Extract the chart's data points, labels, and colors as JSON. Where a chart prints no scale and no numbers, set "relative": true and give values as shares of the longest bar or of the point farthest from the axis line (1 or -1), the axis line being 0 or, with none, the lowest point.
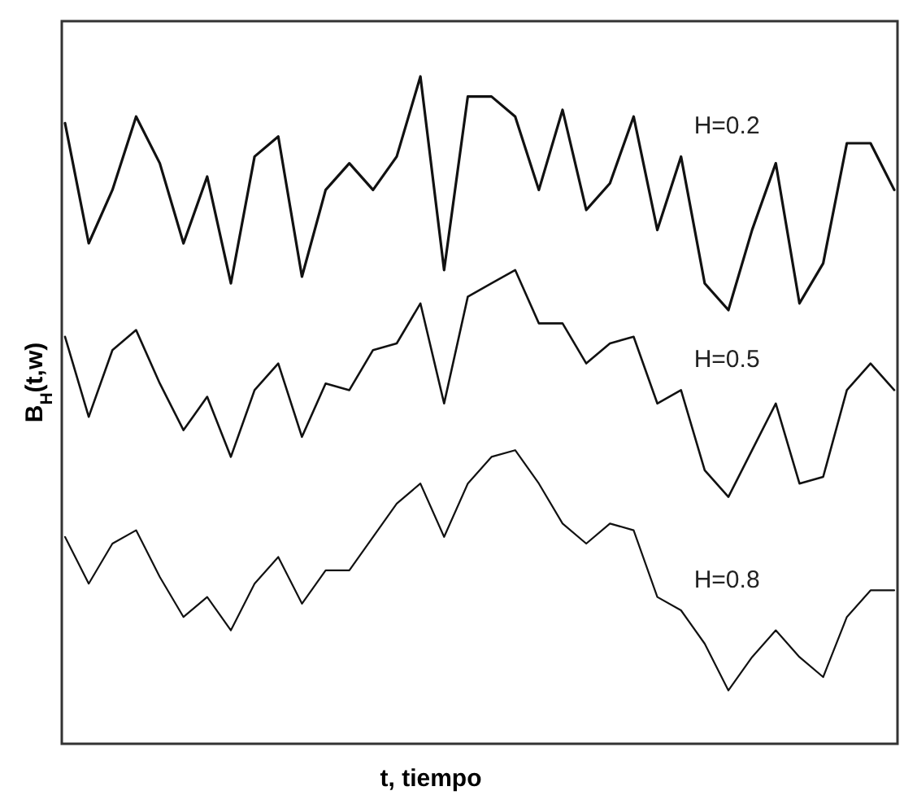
{
  "chart_data": {
    "type": "line",
    "relative": true,
    "xlabel": "t, tiempo",
    "ylabel": "B$_{H}$(t,w)",
    "categories": [
      null,
      null,
      null,
      null,
      null,
      null,
      null,
      null,
      null,
      null,
      null,
      null,
      null,
      null,
      null,
      null,
      null,
      null,
      null,
      null,
      null,
      null,
      null,
      null,
      null,
      null,
      null,
      null,
      null,
      null,
      null,
      null,
      null,
      null,
      null,
      null
    ],
    "series": [
      {
        "name": "H=0.2",
        "color": "#111111",
        "values": [
          0.93,
          0.75,
          0.83,
          0.94,
          0.87,
          0.75,
          0.85,
          0.69,
          0.88,
          0.91,
          0.7,
          0.83,
          0.87,
          0.83,
          0.88,
          1.0,
          0.71,
          0.97,
          0.97,
          0.94,
          0.83,
          0.95,
          0.8,
          0.84,
          0.94,
          0.77,
          0.88,
          0.69,
          0.65,
          0.77,
          0.87,
          0.66,
          0.72,
          0.9,
          0.9,
          0.83
        ]
      },
      {
        "name": "H=0.5",
        "color": "#111111",
        "values": [
          0.61,
          0.49,
          0.59,
          0.62,
          0.54,
          0.47,
          0.52,
          0.43,
          0.53,
          0.57,
          0.46,
          0.54,
          0.53,
          0.59,
          0.6,
          0.66,
          0.51,
          0.67,
          0.69,
          0.71,
          0.63,
          0.63,
          0.57,
          0.6,
          0.61,
          0.51,
          0.53,
          0.41,
          0.37,
          0.44,
          0.51,
          0.39,
          0.4,
          0.53,
          0.57,
          0.53
        ]
      },
      {
        "name": "H=0.8",
        "color": "#111111",
        "values": [
          0.31,
          0.24,
          0.3,
          0.32,
          0.25,
          0.19,
          0.22,
          0.17,
          0.24,
          0.28,
          0.21,
          0.26,
          0.26,
          0.31,
          0.36,
          0.39,
          0.31,
          0.39,
          0.43,
          0.44,
          0.39,
          0.33,
          0.3,
          0.33,
          0.32,
          0.22,
          0.2,
          0.15,
          0.08,
          0.13,
          0.17,
          0.13,
          0.1,
          0.19,
          0.23,
          0.23
        ]
      }
    ]
  }
}
